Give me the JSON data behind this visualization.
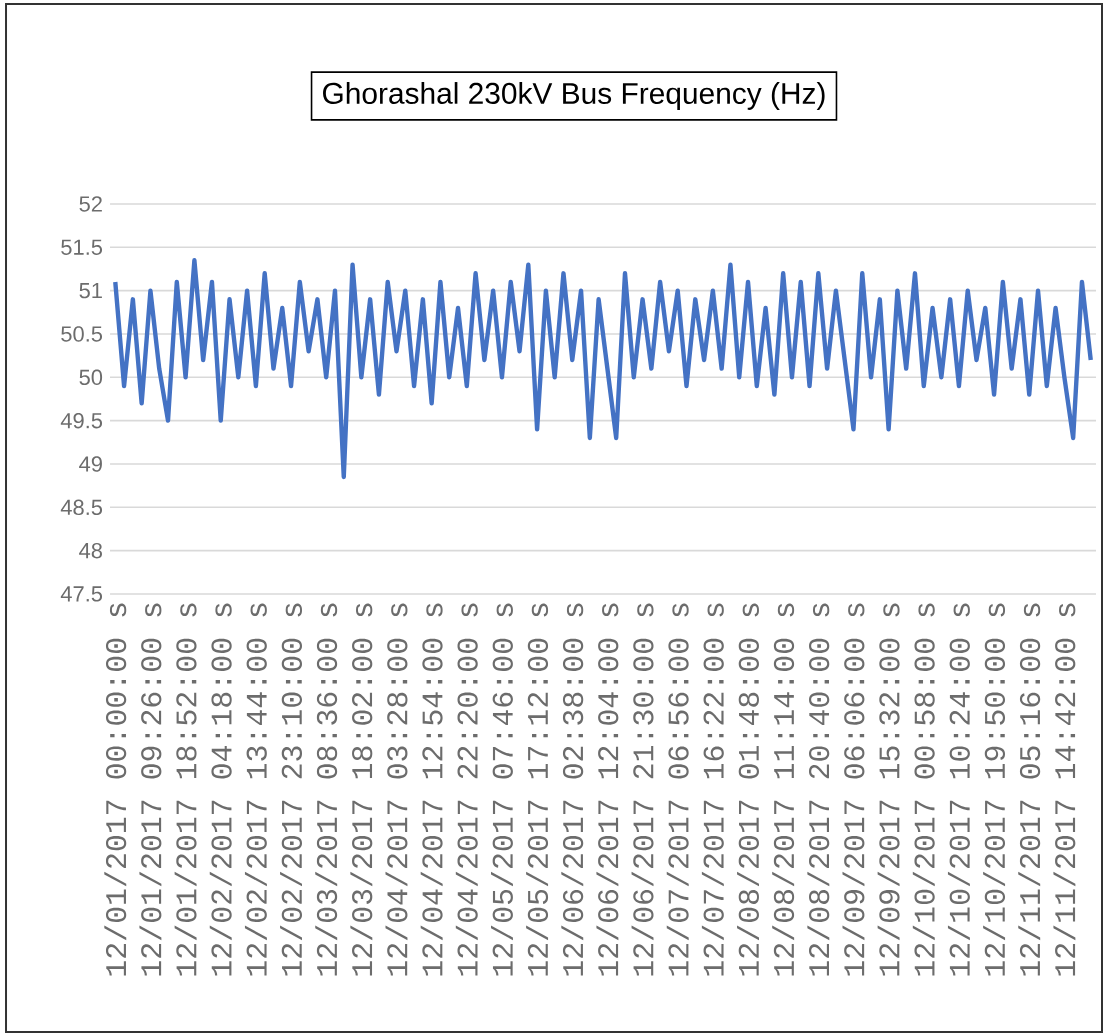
{
  "chart_data": {
    "type": "line",
    "title": "Ghorashal 230kV Bus Frequency (Hz)",
    "categories": [
      "12/01/2017 00:00:00 s",
      null,
      null,
      null,
      "12/01/2017 09:26:00 s",
      null,
      null,
      null,
      "12/01/2017 18:52:00 s",
      null,
      null,
      null,
      "12/02/2017 04:18:00 s",
      null,
      null,
      null,
      "12/02/2017 13:44:00 s",
      null,
      null,
      null,
      "12/02/2017 23:10:00 s",
      null,
      null,
      null,
      "12/03/2017 08:36:00 s",
      null,
      null,
      null,
      "12/03/2017 18:02:00 s",
      null,
      null,
      null,
      "12/04/2017 03:28:00 s",
      null,
      null,
      null,
      "12/04/2017 12:54:00 s",
      null,
      null,
      null,
      "12/04/2017 22:20:00 s",
      null,
      null,
      null,
      "12/05/2017 07:46:00 s",
      null,
      null,
      null,
      "12/05/2017 17:12:00 s",
      null,
      null,
      null,
      "12/06/2017 02:38:00 s",
      null,
      null,
      null,
      "12/06/2017 12:04:00 s",
      null,
      null,
      null,
      "12/06/2017 21:30:00 s",
      null,
      null,
      null,
      "12/07/2017 06:56:00 s",
      null,
      null,
      null,
      "12/07/2017 16:22:00 s",
      null,
      null,
      null,
      "12/08/2017 01:48:00 s",
      null,
      null,
      null,
      "12/08/2017 11:14:00 s",
      null,
      null,
      null,
      "12/08/2017 20:40:00 s",
      null,
      null,
      null,
      "12/09/2017 06:06:00 s",
      null,
      null,
      null,
      "12/09/2017 15:32:00 s",
      null,
      null,
      null,
      "12/10/2017 00:58:00 s",
      null,
      null,
      null,
      "12/10/2017 10:24:00 s",
      null,
      null,
      null,
      "12/10/2017 19:50:00 s",
      null,
      null,
      null,
      "12/11/2017 05:16:00 s",
      null,
      null,
      null,
      "12/11/2017 14:42:00 s",
      null,
      null,
      null
    ],
    "series": [
      {
        "color": "#4472c4",
        "values": [
          51.1,
          49.9,
          50.9,
          49.7,
          51.0,
          50.1,
          49.5,
          51.1,
          50.0,
          51.35,
          50.2,
          51.1,
          49.5,
          50.9,
          50.0,
          51.0,
          49.9,
          51.2,
          50.1,
          50.8,
          49.9,
          51.1,
          50.3,
          50.9,
          50.0,
          51.0,
          48.85,
          51.3,
          50.0,
          50.9,
          49.8,
          51.1,
          50.3,
          51.0,
          49.9,
          50.9,
          49.7,
          51.1,
          50.0,
          50.8,
          49.9,
          51.2,
          50.2,
          51.0,
          50.0,
          51.1,
          50.3,
          51.3,
          49.4,
          51.0,
          50.0,
          51.2,
          50.2,
          51.0,
          49.3,
          50.9,
          50.1,
          49.3,
          51.2,
          50.0,
          50.9,
          50.1,
          51.1,
          50.3,
          51.0,
          49.9,
          50.9,
          50.2,
          51.0,
          50.1,
          51.3,
          50.0,
          51.1,
          49.9,
          50.8,
          49.8,
          51.2,
          50.0,
          51.1,
          49.9,
          51.2,
          50.1,
          51.0,
          50.2,
          49.4,
          51.2,
          50.0,
          50.9,
          49.4,
          51.0,
          50.1,
          51.2,
          49.9,
          50.8,
          50.0,
          50.9,
          49.9,
          51.0,
          50.2,
          50.8,
          49.8,
          51.1,
          50.1,
          50.9,
          49.8,
          51.0,
          49.9,
          50.8,
          50.0,
          49.3,
          51.1,
          50.2
        ]
      }
    ],
    "ylim": [
      47.5,
      52
    ],
    "yticks": [
      47.5,
      48,
      48.5,
      49,
      49.5,
      50,
      50.5,
      51,
      51.5,
      52
    ],
    "grid": "y",
    "marker": "none",
    "line_style": "solid"
  }
}
